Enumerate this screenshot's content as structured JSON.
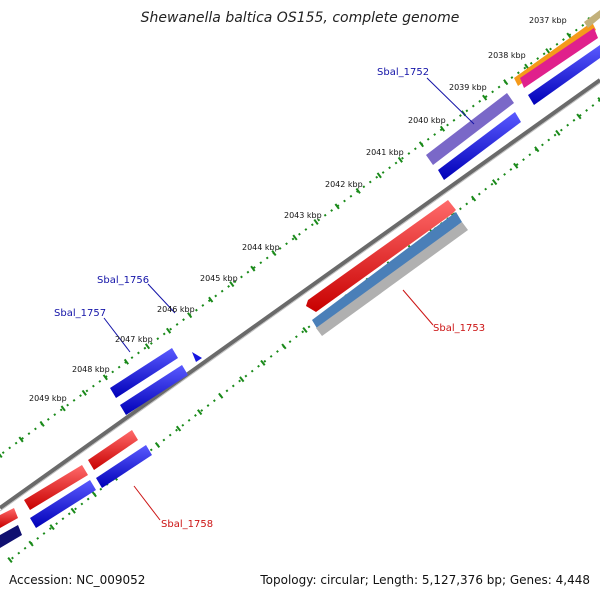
{
  "title": "Shewanella baltica OS155, complete genome",
  "accession": "Accession: NC_009052",
  "summary": "Topology: circular; Length: 5,127,376 bp; Genes: 4,448",
  "tick_labels": [
    "2037 kbp",
    "2038 kbp",
    "2039 kbp",
    "2040 kbp",
    "2041 kbp",
    "2042 kbp",
    "2043 kbp",
    "2044 kbp",
    "2045 kbp",
    "2046 kbp",
    "2047 kbp",
    "2048 kbp",
    "2049 kbp"
  ],
  "gene_labels": {
    "sbal_1752": "Sbal_1752",
    "sbal_1753": "Sbal_1753",
    "sbal_1756": "Sbal_1756",
    "sbal_1757": "Sbal_1757",
    "sbal_1758": "Sbal_1758"
  },
  "colors": {
    "backbone": "#808080",
    "forward_cds": "#e8141a",
    "forward_other": "#1414e0",
    "reverse_cds": "#1c1ce8",
    "steelblue": "#4a7fb8",
    "purple": "#7a68c8",
    "orange": "#f59a1a",
    "magenta": "#e0208c",
    "tan": "#c2b07a",
    "tick": "#1a8a1a",
    "label_blue": "#1414a8",
    "label_red": "#cc1414"
  }
}
